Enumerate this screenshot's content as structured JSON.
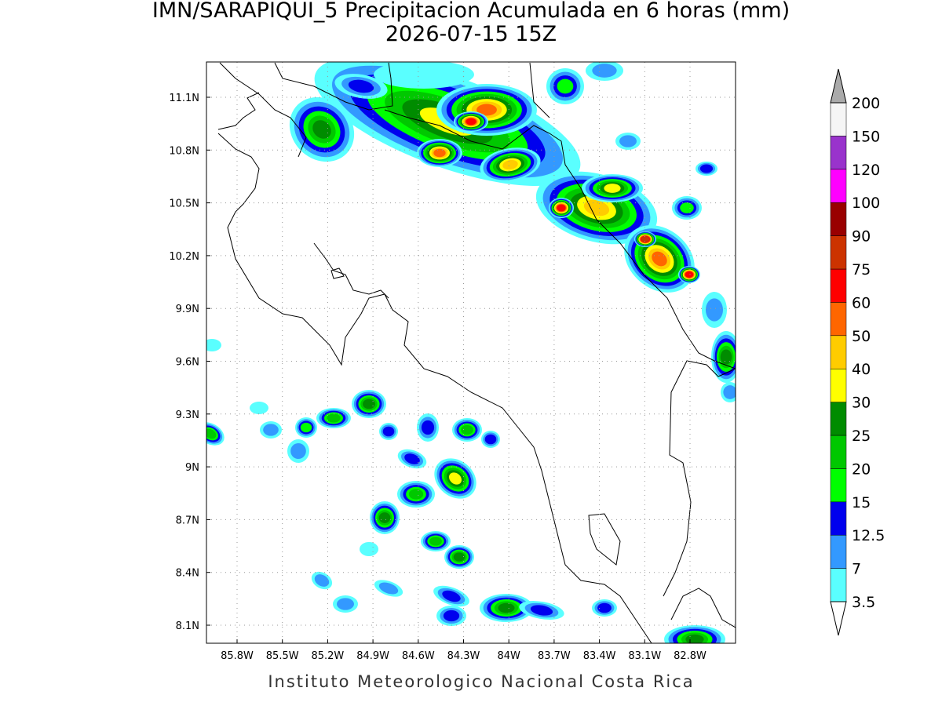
{
  "title": [
    "IMN/SARAPIQUI_5 Precipitacion Acumulada en 6 horas (mm)",
    "2026-07-15 15Z"
  ],
  "lon_ticks": [
    "85.8W",
    "85.5W",
    "85.2W",
    "84.9W",
    "84.6W",
    "84.3W",
    "84W",
    "83.7W",
    "83.4W",
    "83.1W",
    "82.8W"
  ],
  "lat_ticks": [
    "11.1N",
    "10.8N",
    "10.5N",
    "10.2N",
    "9.9N",
    "9.6N",
    "9.3N",
    "9N",
    "8.7N",
    "8.4N",
    "8.1N"
  ],
  "colorbar": {
    "levels": [
      3.5,
      7,
      12.5,
      15,
      20,
      25,
      30,
      40,
      50,
      60,
      75,
      90,
      100,
      120,
      150,
      200
    ],
    "colors": [
      "#5affff",
      "#3399ff",
      "#0000ee",
      "#00ff00",
      "#00c800",
      "#008c00",
      "#ffff00",
      "#ffcc00",
      "#ff6600",
      "#ff0000",
      "#cc3300",
      "#990000",
      "#ff00ff",
      "#9933cc",
      "#f5f5f5"
    ],
    "over_color": "#aaaaaa",
    "under_color": "#ffffff"
  },
  "footer": "Instituto Meteorologico Nacional Costa Rica"
}
